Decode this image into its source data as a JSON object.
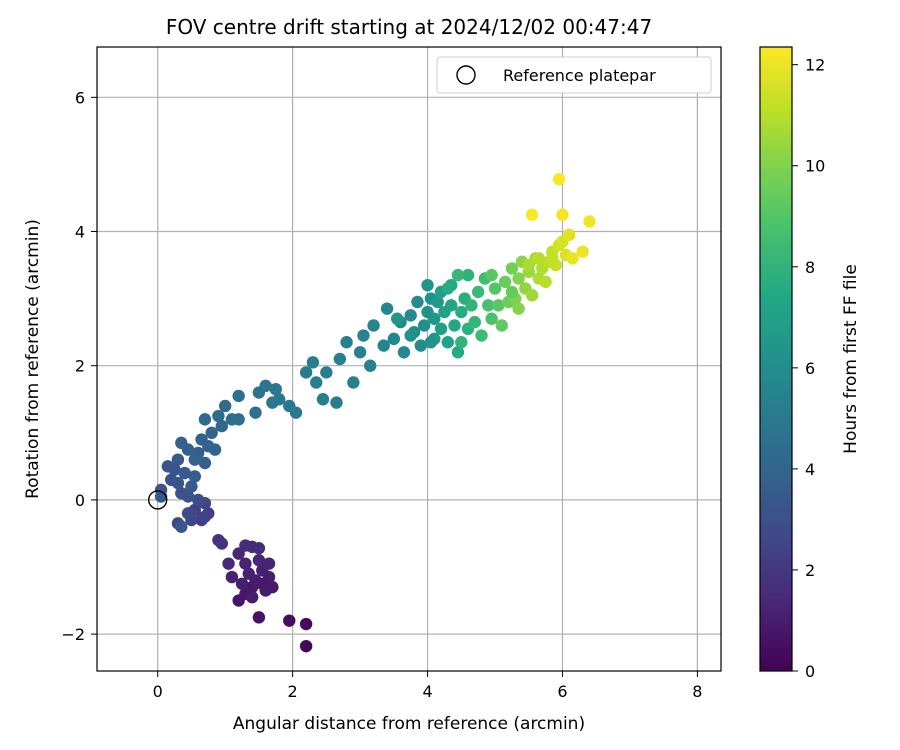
{
  "chart_data": {
    "type": "scatter",
    "title": "FOV centre drift starting at 2024/12/02 00:47:47",
    "xlabel": "Angular distance from reference (arcmin)",
    "ylabel": "Rotation from reference (arcmin)",
    "xlim": [
      -0.9,
      8.35
    ],
    "ylim": [
      -2.55,
      6.75
    ],
    "xticks": [
      0,
      2,
      4,
      6,
      8
    ],
    "yticks": [
      -2,
      0,
      2,
      4,
      6
    ],
    "grid": true,
    "legend": {
      "position": "top-right",
      "label": "Reference platepar"
    },
    "reference_point": {
      "x": 0,
      "y": 0
    },
    "colorbar": {
      "label": "Hours from first FF file",
      "colormap": "viridis",
      "range": [
        0,
        12.35
      ],
      "ticks": [
        0,
        2,
        4,
        6,
        8,
        10,
        12
      ]
    },
    "series": [
      {
        "marker_color_source": "Hours from first FF file",
        "points": [
          [
            2.2,
            -2.18,
            0.2
          ],
          [
            2.2,
            -1.85,
            0.3
          ],
          [
            1.95,
            -1.8,
            0.4
          ],
          [
            1.5,
            -1.75,
            0.6
          ],
          [
            1.2,
            -1.5,
            0.7
          ],
          [
            1.3,
            -1.4,
            0.8
          ],
          [
            1.4,
            -1.3,
            0.8
          ],
          [
            1.6,
            -1.35,
            0.9
          ],
          [
            1.7,
            -1.3,
            0.9
          ],
          [
            1.45,
            -1.2,
            1.0
          ],
          [
            1.25,
            -1.25,
            1.0
          ],
          [
            1.35,
            -1.1,
            1.1
          ],
          [
            1.55,
            -1.05,
            1.1
          ],
          [
            1.1,
            -1.15,
            1.2
          ],
          [
            1.3,
            -0.95,
            1.2
          ],
          [
            1.5,
            -0.9,
            1.3
          ],
          [
            1.65,
            -0.95,
            1.3
          ],
          [
            1.2,
            -0.8,
            1.4
          ],
          [
            1.4,
            -0.7,
            1.5
          ],
          [
            1.05,
            -0.95,
            1.5
          ],
          [
            1.65,
            -1.15,
            1.0
          ],
          [
            1.5,
            -0.72,
            1.6
          ],
          [
            1.3,
            -0.68,
            1.6
          ],
          [
            0.9,
            -0.6,
            1.8
          ],
          [
            0.95,
            -0.65,
            1.8
          ],
          [
            0.65,
            -0.3,
            2.2
          ],
          [
            0.75,
            -0.2,
            2.3
          ],
          [
            0.55,
            -0.15,
            2.4
          ],
          [
            0.7,
            -0.05,
            2.5
          ],
          [
            0.5,
            -0.3,
            2.6
          ],
          [
            0.3,
            -0.35,
            2.7
          ],
          [
            0.45,
            -0.2,
            2.8
          ],
          [
            0.6,
            0.0,
            2.9
          ],
          [
            0.35,
            0.1,
            3.0
          ],
          [
            0.2,
            0.3,
            3.1
          ],
          [
            0.15,
            0.5,
            3.2
          ],
          [
            0.05,
            0.15,
            3.2
          ],
          [
            0.05,
            0.05,
            3.3
          ],
          [
            0.25,
            0.45,
            3.3
          ],
          [
            0.35,
            -0.4,
            3.4
          ],
          [
            0.3,
            0.6,
            3.4
          ],
          [
            0.5,
            0.2,
            3.5
          ],
          [
            0.4,
            0.4,
            3.5
          ],
          [
            0.55,
            0.35,
            3.6
          ],
          [
            0.6,
            0.7,
            3.6
          ],
          [
            0.45,
            0.75,
            3.7
          ],
          [
            0.7,
            0.55,
            3.7
          ],
          [
            0.35,
            0.85,
            3.8
          ],
          [
            0.65,
            0.9,
            3.8
          ],
          [
            0.75,
            0.8,
            3.9
          ],
          [
            0.8,
            1.0,
            4.0
          ],
          [
            0.85,
            0.75,
            4.0
          ],
          [
            0.7,
            1.2,
            4.1
          ],
          [
            0.95,
            1.1,
            4.2
          ],
          [
            1.0,
            1.4,
            4.3
          ],
          [
            0.9,
            1.25,
            4.3
          ],
          [
            1.1,
            1.2,
            4.4
          ],
          [
            1.2,
            1.2,
            4.5
          ],
          [
            1.2,
            1.55,
            4.5
          ],
          [
            1.45,
            1.3,
            4.6
          ],
          [
            1.5,
            1.6,
            4.7
          ],
          [
            1.6,
            1.7,
            4.8
          ],
          [
            1.75,
            1.65,
            4.8
          ],
          [
            1.8,
            1.5,
            4.9
          ],
          [
            1.7,
            1.45,
            4.9
          ],
          [
            1.95,
            1.4,
            5.0
          ],
          [
            2.05,
            1.3,
            5.0
          ],
          [
            2.2,
            1.9,
            5.1
          ],
          [
            2.3,
            2.05,
            5.2
          ],
          [
            2.35,
            1.75,
            5.2
          ],
          [
            2.45,
            1.5,
            5.3
          ],
          [
            2.5,
            1.9,
            5.3
          ],
          [
            2.65,
            1.45,
            5.3
          ],
          [
            2.7,
            2.1,
            5.4
          ],
          [
            2.8,
            2.35,
            5.4
          ],
          [
            2.9,
            1.75,
            5.4
          ],
          [
            3.0,
            2.2,
            5.5
          ],
          [
            3.05,
            2.45,
            5.5
          ],
          [
            3.15,
            2.0,
            5.5
          ],
          [
            3.2,
            2.6,
            5.6
          ],
          [
            3.35,
            2.3,
            5.6
          ],
          [
            3.4,
            2.85,
            5.7
          ],
          [
            3.5,
            2.4,
            5.7
          ],
          [
            3.6,
            2.65,
            5.8
          ],
          [
            3.65,
            2.2,
            5.8
          ],
          [
            3.75,
            2.75,
            5.9
          ],
          [
            3.8,
            2.5,
            5.9
          ],
          [
            3.85,
            2.95,
            6.0
          ],
          [
            3.9,
            2.3,
            6.0
          ],
          [
            3.95,
            2.6,
            6.1
          ],
          [
            4.0,
            2.8,
            6.2
          ],
          [
            4.05,
            3.0,
            6.3
          ],
          [
            4.0,
            3.2,
            6.4
          ],
          [
            4.1,
            2.7,
            6.5
          ],
          [
            4.15,
            2.95,
            6.6
          ],
          [
            4.1,
            2.4,
            6.7
          ],
          [
            4.2,
            3.1,
            6.8
          ],
          [
            4.25,
            2.8,
            6.9
          ],
          [
            4.2,
            2.55,
            7.0
          ],
          [
            4.3,
            2.35,
            7.1
          ],
          [
            4.35,
            2.9,
            7.2
          ],
          [
            4.35,
            3.2,
            7.3
          ],
          [
            4.4,
            2.6,
            7.4
          ],
          [
            4.45,
            2.2,
            7.5
          ],
          [
            4.5,
            2.8,
            7.6
          ],
          [
            4.55,
            3.0,
            7.7
          ],
          [
            4.6,
            2.55,
            7.8
          ],
          [
            4.6,
            3.35,
            7.9
          ],
          [
            4.65,
            2.9,
            8.0
          ],
          [
            4.7,
            2.65,
            8.1
          ],
          [
            4.75,
            3.1,
            8.3
          ],
          [
            4.8,
            2.45,
            8.4
          ],
          [
            4.85,
            3.3,
            8.5
          ],
          [
            4.9,
            2.9,
            8.7
          ],
          [
            4.95,
            2.7,
            8.8
          ],
          [
            5.0,
            3.15,
            9.0
          ],
          [
            5.05,
            2.9,
            9.2
          ],
          [
            5.1,
            2.6,
            9.3
          ],
          [
            5.15,
            3.25,
            9.5
          ],
          [
            5.2,
            2.95,
            9.6
          ],
          [
            5.25,
            3.45,
            9.7
          ],
          [
            5.3,
            3.0,
            9.9
          ],
          [
            5.35,
            3.3,
            10.0
          ],
          [
            5.35,
            2.85,
            10.1
          ],
          [
            5.4,
            3.55,
            10.2
          ],
          [
            5.45,
            3.15,
            10.3
          ],
          [
            5.5,
            3.4,
            10.5
          ],
          [
            5.55,
            3.05,
            10.6
          ],
          [
            5.6,
            3.6,
            10.7
          ],
          [
            5.65,
            3.3,
            10.8
          ],
          [
            5.7,
            3.45,
            10.9
          ],
          [
            5.75,
            3.25,
            11.0
          ],
          [
            5.8,
            3.55,
            11.1
          ],
          [
            5.85,
            3.7,
            11.2
          ],
          [
            5.9,
            3.5,
            11.3
          ],
          [
            5.95,
            3.8,
            11.5
          ],
          [
            6.0,
            3.85,
            11.6
          ],
          [
            6.05,
            3.65,
            11.7
          ],
          [
            6.1,
            3.95,
            11.8
          ],
          [
            6.15,
            3.6,
            11.9
          ],
          [
            6.3,
            3.7,
            12.0
          ],
          [
            6.4,
            4.15,
            12.1
          ],
          [
            5.85,
            3.6,
            11.2
          ],
          [
            6.0,
            4.25,
            12.2
          ],
          [
            5.95,
            4.78,
            12.3
          ],
          [
            5.55,
            4.25,
            12.3
          ],
          [
            5.5,
            3.5,
            10.8
          ],
          [
            4.3,
            3.15,
            7.6
          ],
          [
            4.5,
            2.35,
            8.0
          ],
          [
            4.05,
            2.35,
            6.3
          ],
          [
            3.75,
            2.45,
            6.2
          ],
          [
            3.55,
            2.7,
            6.5
          ],
          [
            4.45,
            3.35,
            8.2
          ],
          [
            5.25,
            3.1,
            9.4
          ],
          [
            4.95,
            3.35,
            9.1
          ],
          [
            5.65,
            3.6,
            11.0
          ],
          [
            0.55,
            0.6,
            3.9
          ],
          [
            0.3,
            0.25,
            3.3
          ],
          [
            0.45,
            0.05,
            3.1
          ],
          [
            0.7,
            -0.25,
            2.4
          ],
          [
            1.55,
            -1.25,
            0.9
          ],
          [
            1.4,
            -1.45,
            1.0
          ]
        ]
      }
    ]
  }
}
